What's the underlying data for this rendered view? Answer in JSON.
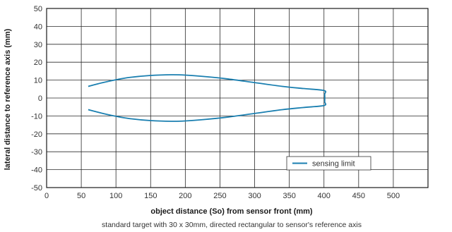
{
  "chart_data": {
    "type": "line",
    "title": "",
    "xlabel": "object distance (So) from sensor front (mm)",
    "ylabel": "lateral distance to reference axis (mm)",
    "note": "standard target with 30 x 30mm, directed rectangular to sensor's reference axis",
    "xlim": [
      0,
      550
    ],
    "ylim": [
      -50,
      50
    ],
    "x_ticks": [
      0,
      50,
      100,
      150,
      200,
      250,
      300,
      350,
      400,
      450,
      500
    ],
    "y_ticks": [
      50,
      40,
      30,
      20,
      10,
      0,
      -10,
      -20,
      -30,
      -40,
      -50
    ],
    "x_tick_labels": [
      "0",
      "50",
      "100",
      "150",
      "200",
      "250",
      "300",
      "350",
      "400",
      "450",
      "500"
    ],
    "y_tick_labels": [
      "50",
      "40",
      "30",
      "20",
      "10",
      "0",
      "-10",
      "-20",
      "-30",
      "-40",
      "-50"
    ],
    "grid": true,
    "legend_position": "bottom-right",
    "colors": {
      "series": "#1a7fb0",
      "grid": "#2a2a2a",
      "frame": "#1a1a1a"
    },
    "series": [
      {
        "name": "sensing limit",
        "x": [
          60,
          80,
          100,
          120,
          150,
          180,
          200,
          230,
          260,
          300,
          340,
          370,
          400,
          401,
          401,
          400,
          370,
          340,
          300,
          260,
          230,
          200,
          180,
          150,
          120,
          100,
          80,
          60
        ],
        "y": [
          6.5,
          8.5,
          10.2,
          11.5,
          12.6,
          13.0,
          12.8,
          11.9,
          10.7,
          8.6,
          6.5,
          5.3,
          4.2,
          2.0,
          -2.0,
          -4.2,
          -5.3,
          -6.5,
          -8.6,
          -10.7,
          -11.9,
          -12.8,
          -13.0,
          -12.6,
          -11.5,
          -10.2,
          -8.5,
          -6.5
        ]
      }
    ]
  }
}
